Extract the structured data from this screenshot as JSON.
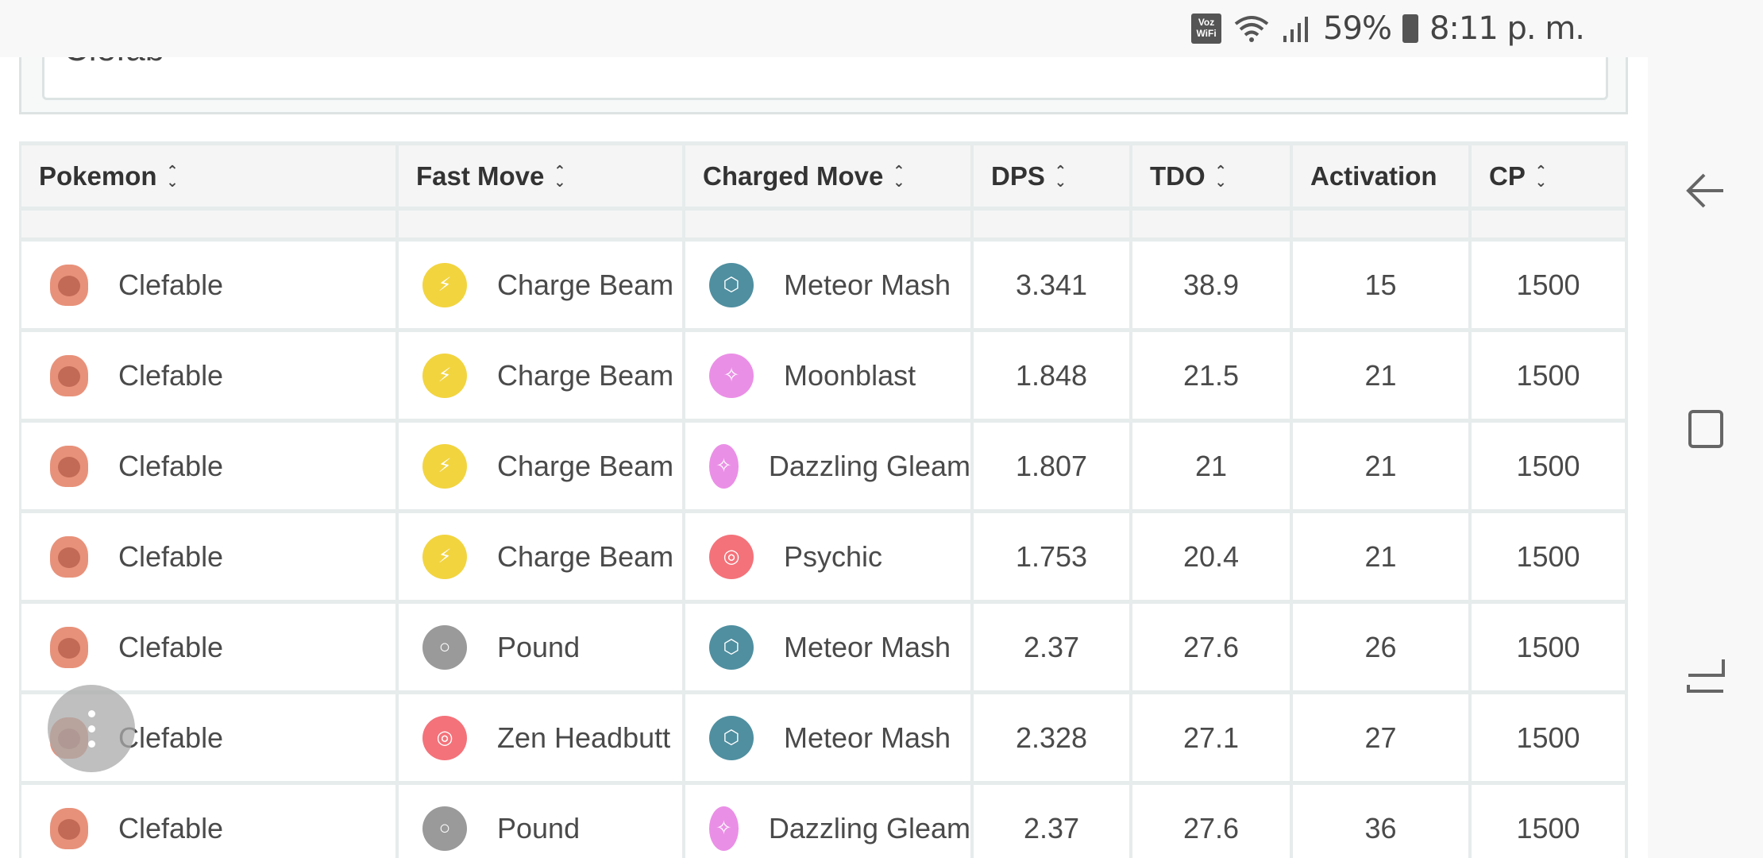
{
  "status_bar": {
    "carrier_badge": "Voz WiFi",
    "battery": "59%",
    "time": "8:11 p. m."
  },
  "search": {
    "value": "Clefab"
  },
  "table": {
    "headers": [
      {
        "label": "Pokemon",
        "sortable": true
      },
      {
        "label": "Fast Move",
        "sortable": true
      },
      {
        "label": "Charged Move",
        "sortable": true
      },
      {
        "label": "DPS",
        "sortable": true
      },
      {
        "label": "TDO",
        "sortable": true
      },
      {
        "label": "Activation",
        "sortable": false
      },
      {
        "label": "CP",
        "sortable": true
      }
    ],
    "rows": [
      {
        "pokemon": "Clefable",
        "fast_move": "Charge Beam",
        "fast_type": "electric",
        "charged_move": "Meteor Mash",
        "charged_type": "steel",
        "dps": "3.341",
        "tdo": "38.9",
        "activation": "15",
        "cp": "1500"
      },
      {
        "pokemon": "Clefable",
        "fast_move": "Charge Beam",
        "fast_type": "electric",
        "charged_move": "Moonblast",
        "charged_type": "fairy",
        "dps": "1.848",
        "tdo": "21.5",
        "activation": "21",
        "cp": "1500"
      },
      {
        "pokemon": "Clefable",
        "fast_move": "Charge Beam",
        "fast_type": "electric",
        "charged_move": "Dazzling Gleam",
        "charged_type": "fairy",
        "dps": "1.807",
        "tdo": "21",
        "activation": "21",
        "cp": "1500"
      },
      {
        "pokemon": "Clefable",
        "fast_move": "Charge Beam",
        "fast_type": "electric",
        "charged_move": "Psychic",
        "charged_type": "psychic",
        "dps": "1.753",
        "tdo": "20.4",
        "activation": "21",
        "cp": "1500"
      },
      {
        "pokemon": "Clefable",
        "fast_move": "Pound",
        "fast_type": "normal",
        "charged_move": "Meteor Mash",
        "charged_type": "steel",
        "dps": "2.37",
        "tdo": "27.6",
        "activation": "26",
        "cp": "1500"
      },
      {
        "pokemon": "Clefable",
        "fast_move": "Zen Headbutt",
        "fast_type": "psychic",
        "charged_move": "Meteor Mash",
        "charged_type": "steel",
        "dps": "2.328",
        "tdo": "27.1",
        "activation": "27",
        "cp": "1500"
      },
      {
        "pokemon": "Clefable",
        "fast_move": "Pound",
        "fast_type": "normal",
        "charged_move": "Dazzling Gleam",
        "charged_type": "fairy",
        "dps": "2.37",
        "tdo": "27.6",
        "activation": "36",
        "cp": "1500"
      }
    ]
  },
  "type_colors": {
    "electric": "#f2d43f",
    "steel": "#4f8fa0",
    "fairy": "#ea8fe6",
    "psychic": "#f4727a",
    "normal": "#9a9a9a"
  },
  "type_icons": {
    "electric": "bolt-icon",
    "steel": "hexagon-icon",
    "fairy": "sparkle-icon",
    "psychic": "swirl-icon",
    "normal": "ring-icon"
  },
  "floating_menu": {
    "icon": "vertical-dots-icon"
  },
  "nav_bar": {
    "back": "back-icon",
    "recents": "recents-icon",
    "home": "home-icon"
  }
}
